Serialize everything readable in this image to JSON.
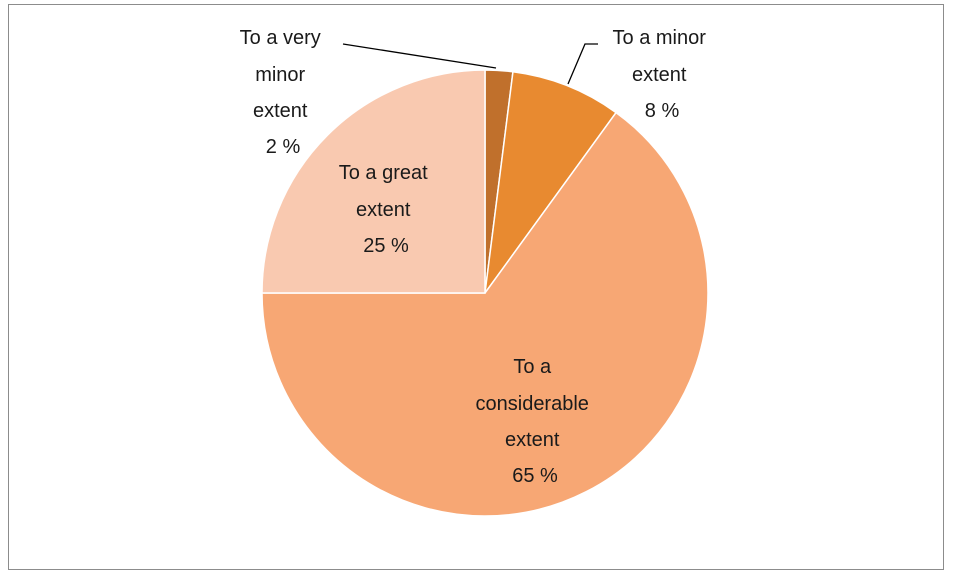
{
  "chart_data": {
    "type": "pie",
    "slices": [
      {
        "label_lines": [
          "To a very",
          "minor",
          "extent"
        ],
        "pct_text": "2 %",
        "value": 2,
        "color": "#c0702c"
      },
      {
        "label_lines": [
          "To a minor",
          "extent"
        ],
        "pct_text": "8 %",
        "value": 8,
        "color": "#e88a30"
      },
      {
        "label_lines": [
          "To a",
          "considerable",
          "extent"
        ],
        "pct_text": "65 %",
        "value": 65,
        "color": "#f7a774"
      },
      {
        "label_lines": [
          "To a great",
          "extent"
        ],
        "pct_text": "25 %",
        "value": 25,
        "color": "#f9c9b0"
      }
    ],
    "legend": "none"
  }
}
